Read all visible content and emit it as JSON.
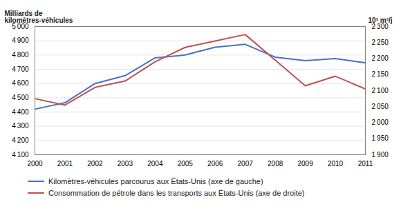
{
  "chart_data": {
    "type": "line",
    "x": [
      2000,
      2001,
      2002,
      2003,
      2004,
      2005,
      2006,
      2007,
      2008,
      2009,
      2010,
      2011
    ],
    "xlim": [
      2000,
      2011
    ],
    "xticks": [
      2000,
      2001,
      2002,
      2003,
      2004,
      2005,
      2006,
      2007,
      2008,
      2009,
      2010,
      2011
    ],
    "ylabel": "Milliards de\nkilomètres-véhicules",
    "y2label": "10³ m³/j",
    "ylim": [
      4100,
      5000
    ],
    "yticks": [
      {
        "value": 4100,
        "label": "4 100"
      },
      {
        "value": 4200,
        "label": "4 200"
      },
      {
        "value": 4300,
        "label": "4 300"
      },
      {
        "value": 4400,
        "label": "4 400"
      },
      {
        "value": 4500,
        "label": "4 500"
      },
      {
        "value": 4600,
        "label": "4 600"
      },
      {
        "value": 4700,
        "label": "4 700"
      },
      {
        "value": 4800,
        "label": "4 800"
      },
      {
        "value": 4900,
        "label": "4 900"
      },
      {
        "value": 5000,
        "label": "5 000"
      }
    ],
    "y2lim": [
      1900,
      2300
    ],
    "y2ticks": [
      {
        "value": 1900,
        "label": "1 900"
      },
      {
        "value": 1950,
        "label": "1 950"
      },
      {
        "value": 2000,
        "label": "2 000"
      },
      {
        "value": 2050,
        "label": "2 050"
      },
      {
        "value": 2100,
        "label": "2 100"
      },
      {
        "value": 2150,
        "label": "2 150"
      },
      {
        "value": 2200,
        "label": "2 200"
      },
      {
        "value": 2250,
        "label": "2 250"
      },
      {
        "value": 2300,
        "label": "2 300"
      }
    ],
    "grid": true,
    "legend": "bottom",
    "series": [
      {
        "name": "Kilomètres-véhicules parcourus aux États-Unis (axe de gauche)",
        "color": "#4472C4",
        "axis": "y",
        "values": [
          4420,
          4465,
          4600,
          4655,
          4780,
          4800,
          4855,
          4875,
          4785,
          4760,
          4775,
          4745
        ]
      },
      {
        "name": "Consommation de pétrole dans les transports aux États-Unis (axe de droite)",
        "color": "#C0504D",
        "axis": "y2",
        "values": [
          2075,
          2055,
          2110,
          2130,
          2190,
          2235,
          2255,
          2275,
          2195,
          2115,
          2145,
          2105
        ]
      }
    ]
  }
}
